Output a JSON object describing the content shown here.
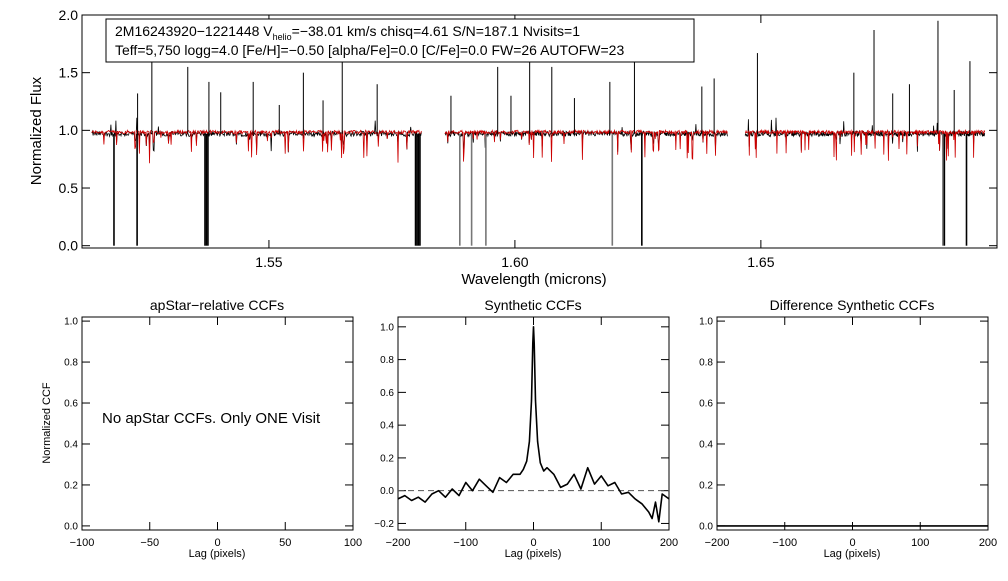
{
  "colors": {
    "observed": "#000000",
    "model": "#cc0000",
    "masked": "#777777",
    "axis": "#000000",
    "zero_line": "#555555"
  },
  "chart_data": [
    {
      "id": "spectrum",
      "type": "line",
      "title_line1": {
        "prefix": "2M16243920−1221448  V",
        "subscript": "helio",
        "suffix": "=−38.01 km/s  chisq=4.61  S/N=187.1  Nvisits=1"
      },
      "title_line2": "Teff=5,750 logg=4.0 [Fe/H]=−0.50 [alpha/Fe]=0.0 [C/Fe]=0.0 FW=26 AUTOFW=23",
      "xlabel": "Wavelength (microns)",
      "ylabel": "Normalized Flux",
      "xlim": [
        1.512,
        1.698
      ],
      "ylim": [
        -0.02,
        2.0
      ],
      "xticks": [
        1.55,
        1.6,
        1.65
      ],
      "xtick_labels": [
        "1.55",
        "1.60",
        "1.65"
      ],
      "yticks": [
        0.0,
        0.5,
        1.0,
        1.5,
        2.0
      ],
      "ytick_labels": [
        "0.0",
        "0.5",
        "1.0",
        "1.5",
        "2.0"
      ],
      "chip_ranges": [
        [
          1.514,
          1.581
        ],
        [
          1.5858,
          1.6432
        ],
        [
          1.6468,
          1.6955
        ]
      ],
      "series": [
        {
          "name": "observed",
          "continuum": 0.97
        },
        {
          "name": "model",
          "continuum": 0.985
        }
      ],
      "emission_spikes": [
        [
          1.5233,
          1.32
        ],
        [
          1.5262,
          1.72
        ],
        [
          1.5335,
          1.55
        ],
        [
          1.5378,
          1.42
        ],
        [
          1.5402,
          1.33
        ],
        [
          1.5468,
          1.42
        ],
        [
          1.5521,
          1.22
        ],
        [
          1.557,
          1.5
        ],
        [
          1.561,
          1.26
        ],
        [
          1.5649,
          1.68
        ],
        [
          1.572,
          1.4
        ],
        [
          1.587,
          1.3
        ],
        [
          1.5965,
          1.55
        ],
        [
          1.5992,
          1.3
        ],
        [
          1.603,
          1.9
        ],
        [
          1.6075,
          1.55
        ],
        [
          1.6121,
          1.28
        ],
        [
          1.6193,
          1.42
        ],
        [
          1.6243,
          1.7
        ],
        [
          1.638,
          1.38
        ],
        [
          1.6405,
          1.45
        ],
        [
          1.6493,
          1.67
        ],
        [
          1.6689,
          1.5
        ],
        [
          1.673,
          1.87
        ],
        [
          1.6768,
          1.32
        ],
        [
          1.6802,
          1.4
        ],
        [
          1.686,
          1.95
        ],
        [
          1.6893,
          1.35
        ],
        [
          1.6925,
          1.6
        ]
      ],
      "telluric_drops": [
        {
          "x": 1.5185,
          "y": 0.0,
          "masked": false
        },
        {
          "x": 1.5232,
          "y": 0.0,
          "masked": false
        },
        {
          "x": 1.537,
          "y": 0.0,
          "masked": false
        },
        {
          "x": 1.5373,
          "y": 0.0,
          "masked": false
        },
        {
          "x": 1.5376,
          "y": 0.0,
          "masked": false
        },
        {
          "x": 1.5798,
          "y": 0.0,
          "masked": false
        },
        {
          "x": 1.5801,
          "y": 0.0,
          "masked": false
        },
        {
          "x": 1.5804,
          "y": 0.0,
          "masked": false
        },
        {
          "x": 1.5807,
          "y": 0.0,
          "masked": false
        },
        {
          "x": 1.5888,
          "y": 0.0,
          "masked": true
        },
        {
          "x": 1.5912,
          "y": 0.0,
          "masked": true
        },
        {
          "x": 1.5941,
          "y": 0.0,
          "masked": true
        },
        {
          "x": 1.6198,
          "y": 0.0,
          "masked": true
        },
        {
          "x": 1.6258,
          "y": 0.0,
          "masked": false
        },
        {
          "x": 1.687,
          "y": 0.0,
          "masked": true
        },
        {
          "x": 1.6873,
          "y": 0.0,
          "masked": false
        },
        {
          "x": 1.6918,
          "y": 0.0,
          "masked": false
        }
      ]
    },
    {
      "id": "apstar_ccf",
      "type": "line",
      "title": "apStar−relative CCFs",
      "xlabel": "Lag (pixels)",
      "ylabel": "Normalized CCF",
      "xlim": [
        -100,
        100
      ],
      "ylim": [
        -0.02,
        1.02
      ],
      "xticks": [
        -100,
        -50,
        0,
        50,
        100
      ],
      "xtick_labels": [
        "−100",
        "−50",
        "0",
        "50",
        "100"
      ],
      "yticks": [
        0.0,
        0.2,
        0.4,
        0.6,
        0.8,
        1.0
      ],
      "ytick_labels": [
        "0.0",
        "0.2",
        "0.4",
        "0.6",
        "0.8",
        "1.0"
      ],
      "annotation": "No apStar CCFs.  Only ONE Visit",
      "series": []
    },
    {
      "id": "synthetic_ccf",
      "type": "line",
      "title": "Synthetic CCFs",
      "xlabel": "Lag (pixels)",
      "ylabel": "",
      "xlim": [
        -200,
        200
      ],
      "ylim": [
        -0.24,
        1.06
      ],
      "xticks": [
        -200,
        -100,
        0,
        100,
        200
      ],
      "xtick_labels": [
        "−200",
        "−100",
        "0",
        "100",
        "200"
      ],
      "yticks": [
        -0.2,
        0.0,
        0.2,
        0.4,
        0.6,
        0.8,
        1.0
      ],
      "ytick_labels": [
        "−0.2",
        "0.0",
        "0.2",
        "0.4",
        "0.6",
        "0.8",
        "1.0"
      ],
      "zero_line": 0.0,
      "series": [
        {
          "name": "ccf",
          "x": [
            -200,
            -190,
            -180,
            -170,
            -160,
            -150,
            -140,
            -130,
            -120,
            -110,
            -100,
            -90,
            -80,
            -70,
            -60,
            -50,
            -40,
            -30,
            -20,
            -15,
            -10,
            -6,
            -3,
            -1,
            0,
            1,
            3,
            6,
            10,
            15,
            20,
            30,
            40,
            50,
            60,
            70,
            80,
            90,
            100,
            110,
            120,
            130,
            140,
            150,
            160,
            170,
            175,
            180,
            185,
            190,
            200
          ],
          "y": [
            -0.05,
            -0.03,
            -0.06,
            -0.04,
            -0.07,
            -0.02,
            0.0,
            -0.04,
            0.01,
            -0.03,
            0.05,
            0.0,
            0.07,
            0.03,
            -0.01,
            0.08,
            0.05,
            0.1,
            0.1,
            0.13,
            0.18,
            0.3,
            0.55,
            0.9,
            1.0,
            0.9,
            0.55,
            0.3,
            0.17,
            0.12,
            0.14,
            0.1,
            0.02,
            0.04,
            0.1,
            0.01,
            0.14,
            0.04,
            0.09,
            0.03,
            0.05,
            -0.02,
            -0.01,
            -0.05,
            -0.08,
            -0.13,
            -0.17,
            -0.07,
            -0.19,
            -0.02,
            -0.05
          ]
        }
      ]
    },
    {
      "id": "difference_ccf",
      "type": "line",
      "title": "Difference Synthetic CCFs",
      "xlabel": "Lag (pixels)",
      "ylabel": "",
      "xlim": [
        -200,
        200
      ],
      "ylim": [
        -0.02,
        1.02
      ],
      "xticks": [
        -200,
        -100,
        0,
        100,
        200
      ],
      "xtick_labels": [
        "−200",
        "−100",
        "0",
        "100",
        "200"
      ],
      "yticks": [
        0.0,
        0.2,
        0.4,
        0.6,
        0.8,
        1.0
      ],
      "ytick_labels": [
        "0.0",
        "0.2",
        "0.4",
        "0.6",
        "0.8",
        "1.0"
      ],
      "series": [
        {
          "name": "difference",
          "x": [
            -200,
            200
          ],
          "y": [
            0.0,
            0.0
          ]
        }
      ]
    }
  ]
}
